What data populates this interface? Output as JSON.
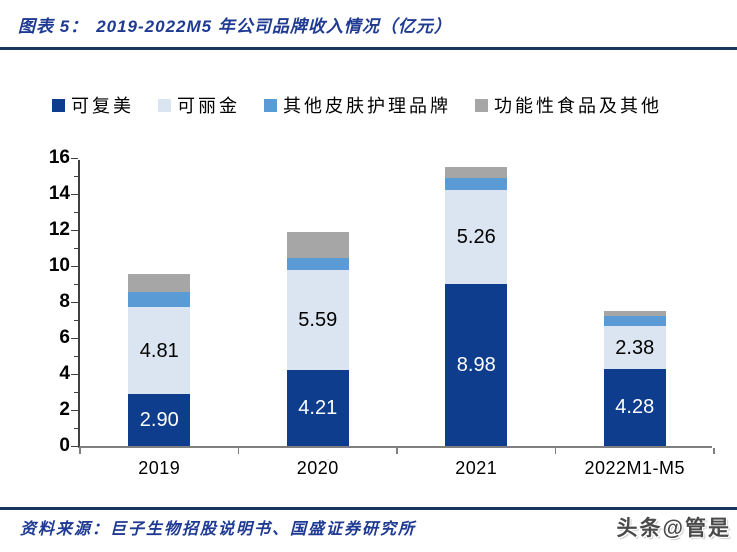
{
  "header": {
    "figure_label": "图表 5：",
    "title": "2019-2022M5 年公司品牌收入情况（亿元）"
  },
  "footer": {
    "source": "资料来源：巨子生物招股说明书、国盛证券研究所",
    "watermark": "头条@管是"
  },
  "colors": {
    "title_text": "#1f3a93",
    "rule": "#17375e",
    "axis": "#404040",
    "baseline": "#7f7f7f"
  },
  "chart_data": {
    "type": "bar",
    "stacked": true,
    "title": "2019-2022M5 年公司品牌收入情况（亿元）",
    "ylabel": "",
    "xlabel": "",
    "categories": [
      "2019",
      "2020",
      "2021",
      "2022M1-M5"
    ],
    "series": [
      {
        "name": "可复美",
        "color": "#0d3d8c",
        "values": [
          2.9,
          4.21,
          8.98,
          4.28
        ],
        "data_labels": [
          "2.90",
          "4.21",
          "8.98",
          "4.28"
        ],
        "label_color": "#ffffff"
      },
      {
        "name": "可丽金",
        "color": "#dbe5f1",
        "values": [
          4.81,
          5.59,
          5.26,
          2.38
        ],
        "data_labels": [
          "4.81",
          "5.59",
          "5.26",
          "2.38"
        ],
        "label_color": "#000000"
      },
      {
        "name": "其他皮肤护理品牌",
        "color": "#5b9bd5",
        "values": [
          0.82,
          0.66,
          0.65,
          0.55
        ],
        "data_labels": null
      },
      {
        "name": "功能性食品及其他",
        "color": "#a6a6a6",
        "values": [
          1.04,
          1.44,
          0.63,
          0.3
        ],
        "data_labels": null
      }
    ],
    "ylim": [
      0,
      16
    ],
    "ytick_major": 2,
    "ytick_minor": 1,
    "grid": false,
    "legend_position": "top"
  }
}
